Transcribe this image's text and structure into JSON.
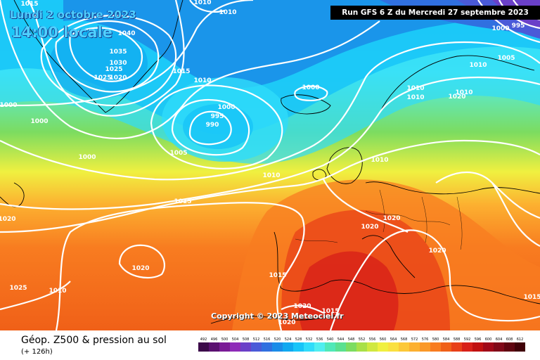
{
  "header": {
    "date": "Lundi 2 octobre 2023",
    "local_time": "14:00 locale",
    "run_info": "Run GFS 6 Z du Mercredi 27 septembre 2023"
  },
  "copyright": "Copyright © 2023 Meteociel.fr",
  "legend": {
    "title": "Géop. Z500 & pression au sol",
    "subtitle": "(+ 126h)",
    "scale": [
      "492",
      "496",
      "500",
      "504",
      "508",
      "512",
      "516",
      "520",
      "524",
      "528",
      "532",
      "536",
      "540",
      "544",
      "548",
      "552",
      "556",
      "560",
      "564",
      "568",
      "572",
      "576",
      "580",
      "584",
      "588",
      "592",
      "596",
      "600",
      "604",
      "608",
      "612"
    ],
    "colors": [
      "#3c0a4a",
      "#5a1070",
      "#7a1a96",
      "#8e2bb8",
      "#6a40c8",
      "#4a5ad8",
      "#3070e0",
      "#1a8ce8",
      "#10a8f0",
      "#18c4f8",
      "#30dcfa",
      "#50eef0",
      "#50e8b8",
      "#5ae090",
      "#7cdc60",
      "#a8e048",
      "#d0e840",
      "#f0f040",
      "#fae040",
      "#fcc838",
      "#fcb030",
      "#fa9828",
      "#f87c20",
      "#f06018",
      "#e84018",
      "#d82018",
      "#c01010",
      "#a00818",
      "#800818",
      "#600410",
      "#400008"
    ]
  },
  "isobars": [
    {
      "value": "1015",
      "color": "#ffffff"
    },
    {
      "value": "1010",
      "color": "#ffffff"
    },
    {
      "value": "1010",
      "color": "#ffffff"
    },
    {
      "value": "1040",
      "color": "#ffffff"
    },
    {
      "value": "1035",
      "color": "#ffffff"
    },
    {
      "value": "1030",
      "color": "#ffffff"
    },
    {
      "value": "1025",
      "color": "#ffffff"
    },
    {
      "value": "1025",
      "color": "#ffffff"
    },
    {
      "value": "1020",
      "color": "#ffffff"
    },
    {
      "value": "1015",
      "color": "#ffffff"
    },
    {
      "value": "1010",
      "color": "#ffffff"
    },
    {
      "value": "1000",
      "color": "#ffffff"
    },
    {
      "value": "1000",
      "color": "#ffffff"
    },
    {
      "value": "1000",
      "color": "#ffffff"
    },
    {
      "value": "995",
      "color": "#ffffff"
    },
    {
      "value": "990",
      "color": "#ffffff"
    },
    {
      "value": "1000",
      "color": "#ffffff"
    },
    {
      "value": "1000",
      "color": "#ffffff"
    },
    {
      "value": "1005",
      "color": "#ffffff"
    },
    {
      "value": "1000",
      "color": "#ffffff"
    },
    {
      "value": "995",
      "color": "#ffffff"
    },
    {
      "value": "1005",
      "color": "#ffffff"
    },
    {
      "value": "1010",
      "color": "#ffffff"
    },
    {
      "value": "1010",
      "color": "#ffffff"
    },
    {
      "value": "1010",
      "color": "#ffffff"
    },
    {
      "value": "1010",
      "color": "#ffffff"
    },
    {
      "value": "1010",
      "color": "#ffffff"
    },
    {
      "value": "1015",
      "color": "#ffffff"
    },
    {
      "value": "1020",
      "color": "#ffffff"
    },
    {
      "value": "1020",
      "color": "#ffffff"
    },
    {
      "value": "1020",
      "color": "#ffffff"
    },
    {
      "value": "1020",
      "color": "#ffffff"
    },
    {
      "value": "1020",
      "color": "#ffffff"
    },
    {
      "value": "1025",
      "color": "#ffffff"
    },
    {
      "value": "1010",
      "color": "#ffffff"
    },
    {
      "value": "1015",
      "color": "#ffffff"
    },
    {
      "value": "1020",
      "color": "#ffffff"
    },
    {
      "value": "1015",
      "color": "#ffffff"
    },
    {
      "value": "1020",
      "color": "#ffffff"
    },
    {
      "value": "1015",
      "color": "#ffffff"
    },
    {
      "value": "1020",
      "color": "#ffffff"
    },
    {
      "value": "1010",
      "color": "#ffffff"
    }
  ]
}
